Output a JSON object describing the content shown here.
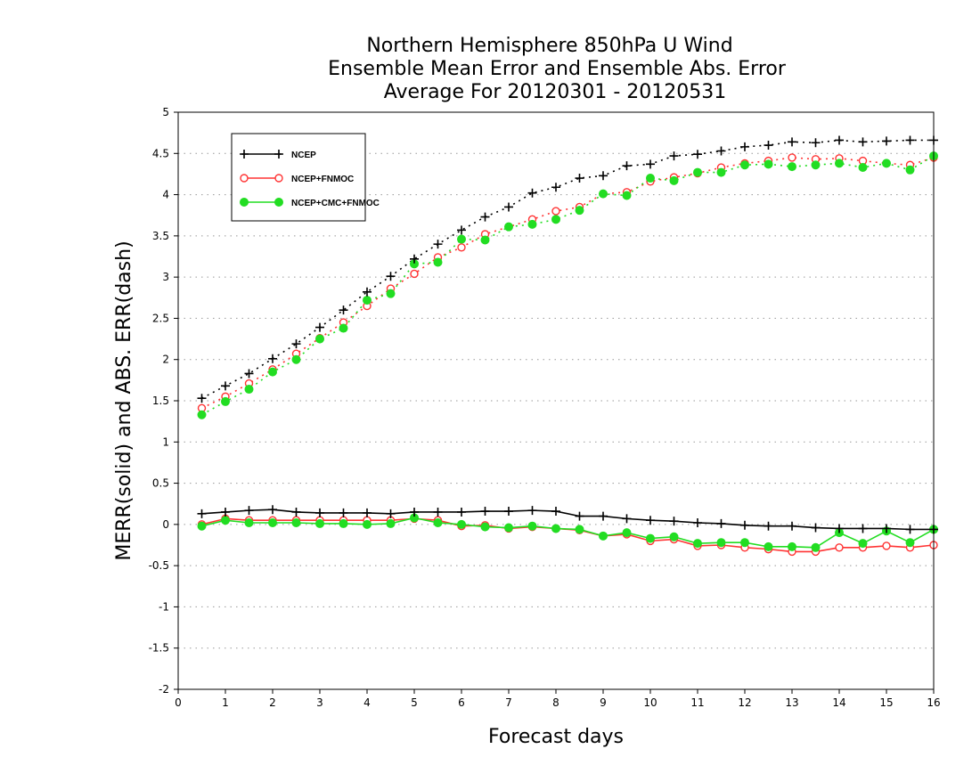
{
  "chart_data": {
    "type": "line",
    "title": [
      "Northern Hemisphere 850hPa U Wind",
      "Ensemble Mean Error and Ensemble Abs. Error",
      "Average For 20120301 - 20120531"
    ],
    "xlabel": "Forecast days",
    "ylabel": "MERR(solid) and ABS. ERR(dash)",
    "xlim": [
      0,
      16
    ],
    "ylim": [
      -2,
      5
    ],
    "xticks": [
      0,
      1,
      2,
      3,
      4,
      5,
      6,
      7,
      8,
      9,
      10,
      11,
      12,
      13,
      14,
      15,
      16
    ],
    "yticks": [
      -2,
      -1.5,
      -1,
      -0.5,
      0,
      0.5,
      1,
      1.5,
      2,
      2.5,
      3,
      3.5,
      4,
      4.5,
      5
    ],
    "ytick_labels": [
      "-2",
      "-1.5",
      "-1",
      "-0.5",
      "0",
      "0.5",
      "1",
      "1.5",
      "2",
      "2.5",
      "3",
      "3.5",
      "4",
      "4.5",
      "5"
    ],
    "grid": "horizontal dotted",
    "legend_position": "top-left",
    "x": [
      0.5,
      1,
      1.5,
      2,
      2.5,
      3,
      3.5,
      4,
      4.5,
      5,
      5.5,
      6,
      6.5,
      7,
      7.5,
      8,
      8.5,
      9,
      9.5,
      10,
      10.5,
      11,
      11.5,
      12,
      12.5,
      13,
      13.5,
      14,
      14.5,
      15,
      15.5,
      16
    ],
    "series": [
      {
        "name": "NCEP",
        "color": "#000000",
        "marker": "plus",
        "abs_error": [
          1.53,
          1.68,
          1.83,
          2.01,
          2.19,
          2.39,
          2.6,
          2.82,
          3.01,
          3.22,
          3.4,
          3.57,
          3.73,
          3.85,
          4.02,
          4.09,
          4.2,
          4.23,
          4.35,
          4.37,
          4.47,
          4.49,
          4.53,
          4.58,
          4.6,
          4.64,
          4.63,
          4.66,
          4.64,
          4.65,
          4.66,
          4.66
        ],
        "mean_error": [
          0.13,
          0.15,
          0.17,
          0.18,
          0.15,
          0.14,
          0.14,
          0.14,
          0.13,
          0.15,
          0.15,
          0.15,
          0.16,
          0.16,
          0.17,
          0.16,
          0.1,
          0.1,
          0.07,
          0.05,
          0.04,
          0.02,
          0.01,
          -0.01,
          -0.02,
          -0.02,
          -0.04,
          -0.05,
          -0.05,
          -0.05,
          -0.06,
          -0.06
        ]
      },
      {
        "name": "NCEP+FNMOC",
        "color": "#ff3333",
        "marker": "open-circle",
        "abs_error": [
          1.41,
          1.55,
          1.71,
          1.88,
          2.07,
          2.26,
          2.45,
          2.65,
          2.86,
          3.04,
          3.24,
          3.36,
          3.52,
          3.61,
          3.7,
          3.8,
          3.85,
          4.01,
          4.03,
          4.16,
          4.21,
          4.26,
          4.33,
          4.38,
          4.41,
          4.45,
          4.43,
          4.44,
          4.41,
          4.38,
          4.36,
          4.45
        ],
        "mean_error": [
          0.0,
          0.07,
          0.05,
          0.05,
          0.05,
          0.05,
          0.05,
          0.05,
          0.05,
          0.07,
          0.05,
          -0.02,
          -0.01,
          -0.05,
          -0.03,
          -0.05,
          -0.07,
          -0.14,
          -0.12,
          -0.2,
          -0.18,
          -0.26,
          -0.25,
          -0.28,
          -0.3,
          -0.33,
          -0.33,
          -0.28,
          -0.28,
          -0.26,
          -0.28,
          -0.25
        ]
      },
      {
        "name": "NCEP+CMC+FNMOC",
        "color": "#22dd22",
        "marker": "filled-circle",
        "abs_error": [
          1.33,
          1.49,
          1.64,
          1.85,
          2.0,
          2.25,
          2.38,
          2.72,
          2.8,
          3.16,
          3.18,
          3.46,
          3.45,
          3.61,
          3.64,
          3.7,
          3.81,
          4.01,
          3.99,
          4.2,
          4.17,
          4.27,
          4.27,
          4.36,
          4.37,
          4.34,
          4.36,
          4.38,
          4.33,
          4.38,
          4.3,
          4.47
        ],
        "mean_error": [
          -0.02,
          0.05,
          0.02,
          0.02,
          0.02,
          0.01,
          0.01,
          0.0,
          0.01,
          0.08,
          0.02,
          0.0,
          -0.03,
          -0.04,
          -0.02,
          -0.05,
          -0.06,
          -0.14,
          -0.1,
          -0.17,
          -0.15,
          -0.23,
          -0.22,
          -0.22,
          -0.27,
          -0.27,
          -0.28,
          -0.1,
          -0.23,
          -0.08,
          -0.22,
          -0.06
        ]
      }
    ]
  }
}
